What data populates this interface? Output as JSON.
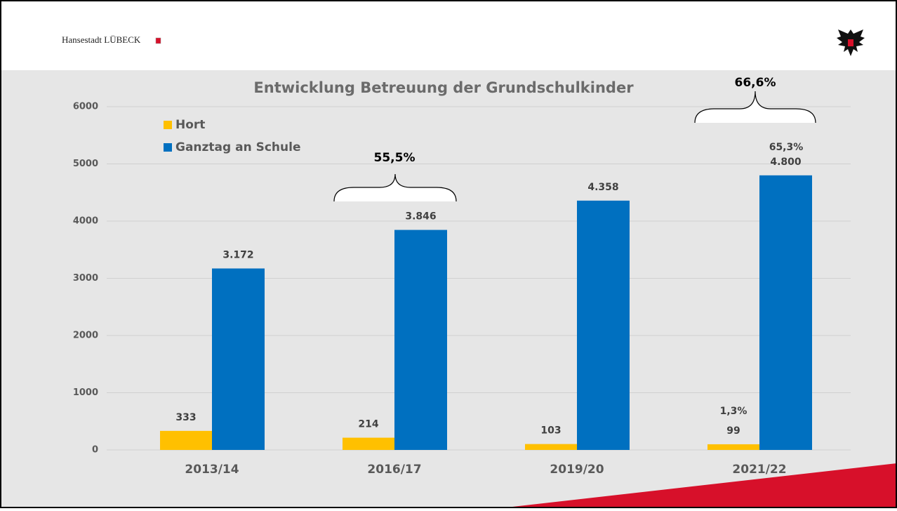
{
  "header": {
    "brand": "Hansestadt LÜBECK"
  },
  "chart_data": {
    "type": "bar",
    "title": "Entwicklung Betreuung der Grundschulkinder",
    "categories": [
      "2013/14",
      "2016/17",
      "2019/20",
      "2021/22"
    ],
    "series": [
      {
        "name": "Hort",
        "color": "#ffc000",
        "values": [
          333,
          214,
          103,
          99
        ]
      },
      {
        "name": "Ganztag an Schule",
        "color": "#0070c0",
        "values": [
          3172,
          3846,
          4358,
          4800
        ],
        "value_labels": [
          "3.172",
          "3.846",
          "4.358",
          "4.800"
        ]
      }
    ],
    "ylim": [
      0,
      6000
    ],
    "yticks": [
      0,
      1000,
      2000,
      3000,
      4000,
      5000,
      6000
    ],
    "grid": true,
    "legend": "top-left",
    "annotations": [
      "55,5%",
      "66,6%",
      "1,3%",
      "65,3%"
    ]
  }
}
